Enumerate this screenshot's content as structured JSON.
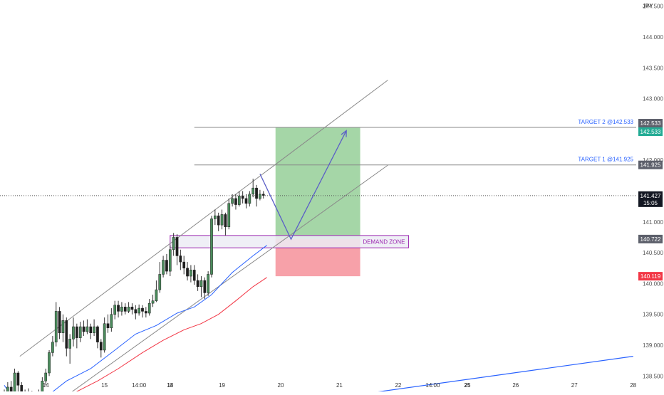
{
  "chart_data": {
    "type": "candlestick",
    "currency": "JPY",
    "y_range": [
      138.25,
      144.6
    ],
    "y_ticks": [
      {
        "value": 144.5,
        "label": "144.500"
      },
      {
        "value": 144.0,
        "label": "144.000"
      },
      {
        "value": 143.5,
        "label": "143.500"
      },
      {
        "value": 143.0,
        "label": "143.000"
      },
      {
        "value": 142.0,
        "label": "142.000"
      },
      {
        "value": 141.0,
        "label": "141.000"
      },
      {
        "value": 140.5,
        "label": "140.500"
      },
      {
        "value": 140.0,
        "label": "140.000"
      },
      {
        "value": 139.5,
        "label": "139.500"
      },
      {
        "value": 139.0,
        "label": "139.000"
      },
      {
        "value": 138.5,
        "label": "138.500"
      }
    ],
    "x_ticks": [
      {
        "slot": 12,
        "label": "14",
        "bold": false
      },
      {
        "slot": 29,
        "label": "15",
        "bold": false
      },
      {
        "slot": 39,
        "label": "14:00",
        "bold": false
      },
      {
        "slot": 48,
        "label": "18",
        "bold": true
      },
      {
        "slot": 63,
        "label": "19",
        "bold": false
      },
      {
        "slot": 80,
        "label": "20",
        "bold": false
      },
      {
        "slot": 97,
        "label": "21",
        "bold": false
      },
      {
        "slot": 114,
        "label": "22",
        "bold": false
      },
      {
        "slot": 124,
        "label": "14:00",
        "bold": false
      },
      {
        "slot": 134,
        "label": "25",
        "bold": true
      },
      {
        "slot": 148,
        "label": "26",
        "bold": false
      },
      {
        "slot": 165,
        "label": "27",
        "bold": false
      },
      {
        "slot": 182,
        "label": "28",
        "bold": false
      }
    ],
    "candles": [
      [
        138.17,
        138.05,
        138.28,
        137.9
      ],
      [
        138.05,
        138.32,
        138.4,
        137.98
      ],
      [
        138.32,
        138.22,
        138.42,
        138.15
      ],
      [
        138.22,
        138.55,
        138.62,
        138.18
      ],
      [
        138.55,
        138.35,
        138.58,
        138.25
      ],
      [
        138.35,
        138.2,
        138.4,
        138.08
      ],
      [
        138.2,
        138.12,
        138.28,
        138.05
      ],
      [
        138.12,
        138.22,
        138.3,
        138.06
      ],
      [
        138.22,
        138.1,
        138.26,
        138.02
      ],
      [
        138.1,
        138.18,
        138.25,
        138.04
      ],
      [
        138.18,
        138.15,
        138.28,
        138.08
      ],
      [
        138.15,
        138.42,
        138.48,
        138.12
      ],
      [
        138.42,
        138.55,
        138.62,
        138.35
      ],
      [
        138.55,
        138.88,
        138.92,
        138.5
      ],
      [
        138.88,
        139.05,
        139.15,
        138.82
      ],
      [
        139.05,
        139.55,
        139.7,
        138.98
      ],
      [
        139.55,
        139.2,
        139.62,
        139.1
      ],
      [
        139.2,
        139.4,
        139.5,
        139.05
      ],
      [
        139.4,
        138.95,
        139.45,
        138.82
      ],
      [
        138.95,
        139.1,
        139.18,
        138.7
      ],
      [
        139.1,
        139.3,
        139.45,
        138.98
      ],
      [
        139.3,
        139.12,
        139.35,
        138.95
      ],
      [
        139.12,
        139.3,
        139.38,
        139.05
      ],
      [
        139.3,
        139.22,
        139.4,
        139.15
      ],
      [
        139.22,
        139.3,
        139.42,
        139.18
      ],
      [
        139.3,
        139.2,
        139.35,
        139.1
      ],
      [
        139.2,
        139.3,
        139.42,
        139.15
      ],
      [
        139.3,
        139.05,
        139.32,
        138.95
      ],
      [
        139.05,
        138.92,
        139.1,
        138.8
      ],
      [
        138.92,
        139.35,
        139.45,
        138.88
      ],
      [
        139.35,
        139.28,
        139.5,
        139.2
      ],
      [
        139.28,
        139.5,
        139.6,
        139.22
      ],
      [
        139.5,
        139.65,
        139.72,
        139.42
      ],
      [
        139.65,
        139.55,
        139.72,
        139.45
      ],
      [
        139.55,
        139.62,
        139.7,
        139.48
      ],
      [
        139.62,
        139.55,
        139.68,
        139.5
      ],
      [
        139.55,
        139.62,
        139.7,
        139.52
      ],
      [
        139.62,
        139.58,
        139.68,
        139.5
      ],
      [
        139.58,
        139.52,
        139.65,
        139.42
      ],
      [
        139.52,
        139.6,
        139.66,
        139.48
      ],
      [
        139.6,
        139.55,
        139.65,
        139.45
      ],
      [
        139.55,
        139.52,
        139.62,
        139.45
      ],
      [
        139.52,
        139.68,
        139.75,
        139.48
      ],
      [
        139.68,
        139.72,
        139.82,
        139.62
      ],
      [
        139.72,
        139.9,
        140.05,
        139.7
      ],
      [
        139.9,
        140.15,
        140.35,
        139.85
      ],
      [
        140.15,
        140.38,
        140.45,
        140.1
      ],
      [
        140.38,
        140.2,
        140.48,
        140.15
      ],
      [
        140.2,
        140.55,
        140.62,
        140.12
      ],
      [
        140.55,
        140.75,
        140.82,
        140.45
      ],
      [
        140.75,
        140.45,
        140.8,
        140.3
      ],
      [
        140.45,
        140.35,
        140.55,
        140.22
      ],
      [
        140.35,
        140.25,
        140.45,
        140.15
      ],
      [
        140.25,
        140.12,
        140.35,
        140.05
      ],
      [
        140.12,
        140.22,
        140.3,
        140.02
      ],
      [
        140.22,
        140.05,
        140.3,
        139.98
      ],
      [
        140.05,
        139.95,
        140.15,
        139.88
      ],
      [
        139.95,
        140.05,
        140.12,
        139.78
      ],
      [
        140.05,
        139.85,
        140.1,
        139.75
      ],
      [
        139.85,
        140.15,
        140.2,
        139.8
      ],
      [
        140.15,
        141.05,
        141.1,
        140.1
      ],
      [
        141.05,
        141.1,
        141.2,
        140.95
      ],
      [
        141.1,
        140.95,
        141.15,
        140.85
      ],
      [
        140.95,
        141.12,
        141.2,
        140.88
      ],
      [
        141.12,
        140.92,
        141.15,
        140.78
      ],
      [
        140.92,
        141.3,
        141.38,
        140.88
      ],
      [
        141.3,
        141.38,
        141.45,
        141.25
      ],
      [
        141.38,
        141.28,
        141.45,
        141.2
      ],
      [
        141.28,
        141.42,
        141.5,
        141.25
      ],
      [
        141.42,
        141.38,
        141.5,
        141.3
      ],
      [
        141.38,
        141.3,
        141.45,
        141.22
      ],
      [
        141.3,
        141.45,
        141.5,
        141.25
      ],
      [
        141.45,
        141.55,
        141.7,
        141.4
      ],
      [
        141.55,
        141.38,
        141.6,
        141.25
      ],
      [
        141.38,
        141.45,
        141.52,
        141.35
      ],
      [
        141.45,
        141.43,
        141.5,
        141.38
      ]
    ],
    "moving_averages": [
      {
        "color": "#2962ff",
        "points": [
          [
            0,
            138.35
          ],
          [
            3,
            138.1
          ],
          [
            8,
            138.12
          ],
          [
            13,
            138.2
          ],
          [
            18,
            138.42
          ],
          [
            25,
            138.62
          ],
          [
            32,
            138.92
          ],
          [
            38,
            139.18
          ],
          [
            44,
            139.32
          ],
          [
            50,
            139.52
          ],
          [
            55,
            139.62
          ],
          [
            60,
            139.82
          ],
          [
            66,
            140.18
          ],
          [
            72,
            140.45
          ],
          [
            76,
            140.62
          ]
        ]
      },
      {
        "color": "#f23645",
        "points": [
          [
            0,
            138.18
          ],
          [
            4,
            138.12
          ],
          [
            8,
            138.1
          ],
          [
            14,
            138.12
          ],
          [
            20,
            138.22
          ],
          [
            27,
            138.42
          ],
          [
            33,
            138.62
          ],
          [
            40,
            138.88
          ],
          [
            46,
            139.08
          ],
          [
            52,
            139.25
          ],
          [
            57,
            139.35
          ],
          [
            62,
            139.5
          ],
          [
            67,
            139.72
          ],
          [
            72,
            139.95
          ],
          [
            76,
            140.1
          ]
        ]
      }
    ],
    "channel": {
      "upper": [
        [
          4.5,
          138.82
        ],
        [
          111,
          143.3
        ]
      ],
      "lower": [
        [
          14,
          138.02
        ],
        [
          111,
          141.92
        ]
      ]
    },
    "long_trendline": {
      "from": [
        77,
        138.0
      ],
      "to": [
        182,
        138.82
      ],
      "color": "#2962ff"
    },
    "lower_left_line": {
      "from": [
        6,
        138.12
      ],
      "to": [
        9,
        138.02
      ]
    },
    "zigzag": {
      "points": [
        [
          74,
          141.78
        ],
        [
          83,
          140.72
        ],
        [
          99,
          142.48
        ]
      ],
      "color": "#5b5fc7"
    },
    "horizontal_levels": [
      {
        "value": 142.533,
        "from_slot": 55,
        "label": "TARGET 2 @142.533"
      },
      {
        "value": 141.925,
        "from_slot": 55,
        "label": "TARGET 1 @141.925"
      }
    ],
    "current_price": {
      "value": 141.427,
      "label": "141.427",
      "countdown": "15:05"
    },
    "demand_zone": {
      "label": "DEMAND ZONE",
      "from_slot": 48,
      "to_slot": 117,
      "top": 140.78,
      "bottom": 140.58
    },
    "position": {
      "from_slot": 78.5,
      "to_slot": 103,
      "entry": 140.722,
      "target": 142.533,
      "stop": 140.119
    },
    "axis_labels": [
      {
        "value": 142.533,
        "text": "142.533",
        "bg": "#5d606b",
        "fg": "#ffffff",
        "offset": -6
      },
      {
        "value": 142.533,
        "text": "142.533",
        "bg": "#22ab94",
        "fg": "#ffffff",
        "offset": 6
      },
      {
        "value": 141.925,
        "text": "141.925",
        "bg": "#5d606b",
        "fg": "#ffffff",
        "offset": 0
      },
      {
        "value": 140.722,
        "text": "140.722",
        "bg": "#5d606b",
        "fg": "#ffffff",
        "offset": 0
      },
      {
        "value": 140.119,
        "text": "140.119",
        "bg": "#f23645",
        "fg": "#ffffff",
        "offset": 0
      }
    ],
    "colors": {
      "up": "#4a8c5c",
      "down": "#1e1e1e",
      "wick": "#333333",
      "profit_zone": "#a5d6a7",
      "loss_zone": "#f7a1a9",
      "level_line": "#888888",
      "level_text": "#2962ff",
      "zone_border": "#9c27b0",
      "zone_fill": "#ececf4",
      "zone_text": "#9c27b0",
      "channel": "#8a8a8a"
    }
  }
}
